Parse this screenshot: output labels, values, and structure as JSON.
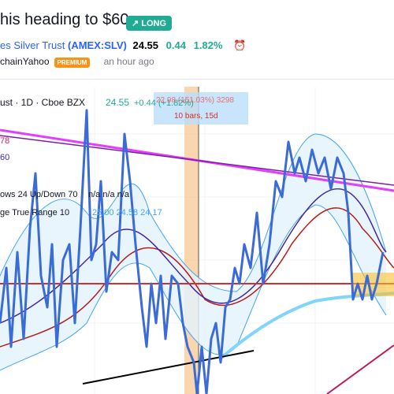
{
  "header": {
    "title": "his heading to $60",
    "badge": "LONG"
  },
  "symbol": {
    "name": "es Silver Trust",
    "ticker": "(AMEX:SLV)",
    "price": "24.55",
    "change": "0.44",
    "change_pct": "1.82%"
  },
  "author": {
    "name": "chainYahoo",
    "tag": "PREMIUM",
    "time": "an hour ago"
  },
  "chart": {
    "legend": {
      "name": "ust · 1D · Cboe BZX",
      "price": "24.55",
      "change": "+0.44 (+1.82%)"
    },
    "measure": {
      "line1": "22.98 (151.03%) 3298",
      "line2": "10 bars, 15d"
    },
    "left_labels": [
      "78",
      "60"
    ],
    "indicators": [
      {
        "name": "ows 24 Up/Down 70",
        "values": "n/a n/a n/a"
      },
      {
        "name": "ge True Range 10",
        "values": "25.00 24.58 24.17"
      }
    ]
  }
}
